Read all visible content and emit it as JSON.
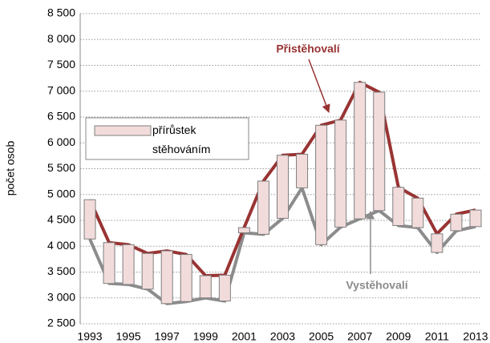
{
  "chart_data": {
    "type": "updown",
    "y_label": "počet osob",
    "categories": [
      "1993",
      null,
      "1995",
      null,
      "1997",
      null,
      "1999",
      null,
      "2001",
      null,
      "2003",
      null,
      "2005",
      null,
      "2007",
      null,
      "2009",
      null,
      "2011",
      null,
      "2013"
    ],
    "series": [
      {
        "name": "Přistěhovalí",
        "color": "#993333",
        "values": [
          4900,
          4070,
          4030,
          3860,
          3910,
          3840,
          3430,
          3440,
          4360,
          5260,
          5760,
          5780,
          6340,
          6440,
          7170,
          6980,
          5140,
          4930,
          4240,
          4620,
          4700
        ]
      },
      {
        "name": "Vystěhovalí",
        "color": "#8c8c8c",
        "values": [
          4140,
          3280,
          3260,
          3170,
          2890,
          2930,
          3000,
          2940,
          4260,
          4230,
          4540,
          5130,
          4030,
          4370,
          4530,
          4690,
          4400,
          4360,
          3880,
          4300,
          4380
        ]
      }
    ],
    "bar_color": "#f2dcdb",
    "legend": {
      "label": "přírůstek stěhováním"
    },
    "ylim": [
      2500,
      8500
    ],
    "yticks": [
      {
        "value": 2500,
        "label": "2 500"
      },
      {
        "value": 3000,
        "label": "3 000"
      },
      {
        "value": 3500,
        "label": "3 500"
      },
      {
        "value": 4000,
        "label": "4 000"
      },
      {
        "value": 4500,
        "label": "4 500"
      },
      {
        "value": 5000,
        "label": "5 000"
      },
      {
        "value": 5500,
        "label": "5 500"
      },
      {
        "value": 6000,
        "label": "6 000"
      },
      {
        "value": 6500,
        "label": "6 500"
      },
      {
        "value": 7000,
        "label": "7 000"
      },
      {
        "value": 7500,
        "label": "7 500"
      },
      {
        "value": 8000,
        "label": "8 000"
      },
      {
        "value": 8500,
        "label": "8 500"
      }
    ],
    "grid": true
  }
}
